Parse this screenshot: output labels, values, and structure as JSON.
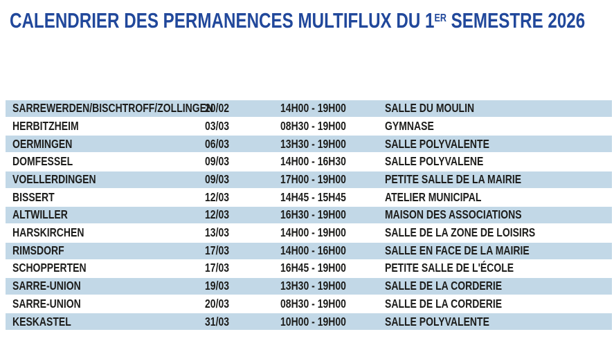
{
  "title": {
    "prefix": "CALENDRIER DES PERMANENCES MULTIFLUX DU 1",
    "superscript": "ER",
    "suffix": " SEMESTRE 2026"
  },
  "colors": {
    "accent_blue": "#21489b",
    "row_highlight": "#c2d8e7",
    "text": "#1d1d1b"
  },
  "table": {
    "columns": [
      "location",
      "date",
      "time",
      "venue"
    ],
    "rows": [
      {
        "location": "SARREWERDEN/BISCHTROFF/ZOLLINGEN",
        "date": "20/02",
        "time": "14H00 - 19H00",
        "venue": "SALLE DU MOULIN",
        "highlighted": true
      },
      {
        "location": "HERBITZHEIM",
        "date": "03/03",
        "time": "08H30 - 19H00",
        "venue": "GYMNASE",
        "highlighted": false
      },
      {
        "location": "OERMINGEN",
        "date": "06/03",
        "time": "13H30 - 19H00",
        "venue": "SALLE POLYVALENTE",
        "highlighted": true
      },
      {
        "location": "DOMFESSEL",
        "date": "09/03",
        "time": "14H00 - 16H30",
        "venue": "SALLE POLYVALENE",
        "highlighted": false
      },
      {
        "location": "VOELLERDINGEN",
        "date": "09/03",
        "time": "17H00 - 19H00",
        "venue": "PETITE SALLE DE LA MAIRIE",
        "highlighted": true
      },
      {
        "location": "BISSERT",
        "date": "12/03",
        "time": "14H45 - 15H45",
        "venue": "ATELIER MUNICIPAL",
        "highlighted": false
      },
      {
        "location": "ALTWILLER",
        "date": "12/03",
        "time": "16H30 - 19H00",
        "venue": "MAISON DES ASSOCIATIONS",
        "highlighted": true
      },
      {
        "location": "HARSKIRCHEN",
        "date": "13/03",
        "time": "14H00 - 19H00",
        "venue": "SALLE DE LA ZONE DE LOISIRS",
        "highlighted": false
      },
      {
        "location": "RIMSDORF",
        "date": "17/03",
        "time": "14H00 - 16H00",
        "venue": "SALLE EN FACE DE LA MAIRIE",
        "highlighted": true
      },
      {
        "location": "SCHOPPERTEN",
        "date": "17/03",
        "time": "16H45 - 19H00",
        "venue": "PETITE SALLE DE L'ÉCOLE",
        "highlighted": false
      },
      {
        "location": "SARRE-UNION",
        "date": "19/03",
        "time": "13H30 - 19H00",
        "venue": "SALLE DE LA CORDERIE",
        "highlighted": true
      },
      {
        "location": "SARRE-UNION",
        "date": "20/03",
        "time": "08H30 - 19H00",
        "venue": "SALLE DE LA CORDERIE",
        "highlighted": false
      },
      {
        "location": "KESKASTEL",
        "date": "31/03",
        "time": "10H00 - 19H00",
        "venue": "SALLE POLYVALENTE",
        "highlighted": true
      }
    ]
  }
}
